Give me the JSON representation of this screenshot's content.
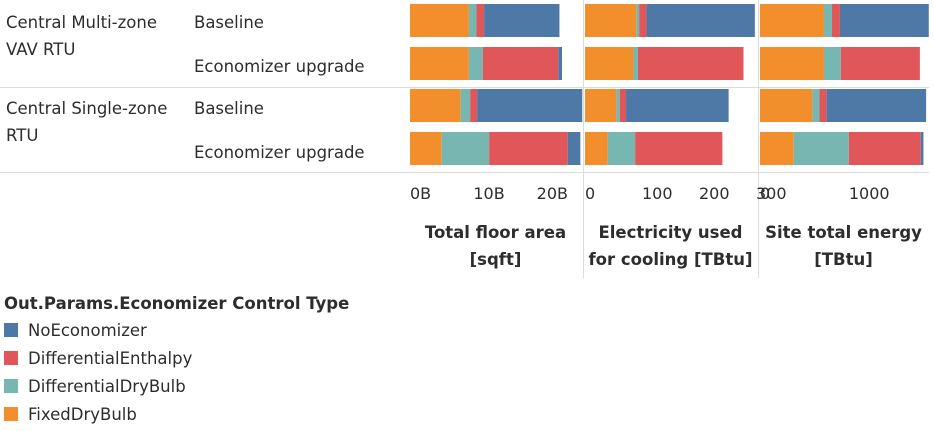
{
  "chart_data": {
    "type": "bar",
    "orientation": "horizontal",
    "stacked": true,
    "groups": [
      {
        "label": "Central Multi-zone VAV RTU",
        "label_lines": [
          "Central Multi-zone",
          "VAV RTU"
        ]
      },
      {
        "label": "Central Single-zone RTU",
        "label_lines": [
          "Central Single-zone",
          "RTU"
        ]
      }
    ],
    "rows": [
      {
        "group": 0,
        "label": "Baseline"
      },
      {
        "group": 0,
        "label": "Economizer upgrade"
      },
      {
        "group": 1,
        "label": "Baseline"
      },
      {
        "group": 1,
        "label": "Economizer upgrade"
      }
    ],
    "stack_order": [
      "FixedDryBulb",
      "DifferentialDryBulb",
      "DifferentialEnthalpy",
      "NoEconomizer"
    ],
    "legend": {
      "title": "Out.Params.Economizer Control Type",
      "items": [
        "NoEconomizer",
        "DifferentialEnthalpy",
        "DifferentialDryBulb",
        "FixedDryBulb"
      ]
    },
    "colors": {
      "NoEconomizer": "#4e79a7",
      "DifferentialEnthalpy": "#e15759",
      "DifferentialDryBulb": "#76b7b2",
      "FixedDryBulb": "#f28e2b"
    },
    "panels": [
      {
        "title_lines": [
          "Total floor area",
          "[sqft]"
        ],
        "xlim": [
          0,
          27
        ],
        "ticks": [
          {
            "value": 0,
            "label": "0B"
          },
          {
            "value": 10,
            "label": "10B"
          },
          {
            "value": 20,
            "label": "20B"
          }
        ],
        "series": [
          {
            "name": "FixedDryBulb",
            "values": [
              9.3,
              9.3,
              8.0,
              5.0
            ]
          },
          {
            "name": "DifferentialDryBulb",
            "values": [
              1.2,
              2.2,
              1.5,
              7.5
            ]
          },
          {
            "name": "DifferentialEnthalpy",
            "values": [
              1.2,
              11.9,
              1.1,
              12.4
            ]
          },
          {
            "name": "NoEconomizer",
            "values": [
              11.9,
              0.6,
              16.6,
              2.0
            ]
          }
        ]
      },
      {
        "title_lines": [
          "Electricity used",
          "for cooling [TBtu]"
        ],
        "xlim": [
          0,
          300
        ],
        "ticks": [
          {
            "value": 0,
            "label": "0"
          },
          {
            "value": 100,
            "label": "100"
          },
          {
            "value": 200,
            "label": "200"
          },
          {
            "value": 300,
            "label": "300"
          }
        ],
        "series": [
          {
            "name": "FixedDryBulb",
            "values": [
              90,
              85,
              55,
              40
            ]
          },
          {
            "name": "DifferentialDryBulb",
            "values": [
              5,
              8,
              6,
              48
            ]
          },
          {
            "name": "DifferentialEnthalpy",
            "values": [
              13,
              185,
              11,
              153
            ]
          },
          {
            "name": "NoEconomizer",
            "values": [
              190,
              0,
              180,
              0
            ]
          }
        ]
      },
      {
        "title_lines": [
          "Site total energy",
          "[TBtu]"
        ],
        "xlim": [
          0,
          1880
        ],
        "ticks": [
          {
            "value": 0,
            "label": "0"
          },
          {
            "value": 1000,
            "label": "1000"
          }
        ],
        "series": [
          {
            "name": "FixedDryBulb",
            "values": [
              720,
              720,
              590,
              380
            ]
          },
          {
            "name": "DifferentialDryBulb",
            "values": [
              90,
              190,
              80,
              620
            ]
          },
          {
            "name": "DifferentialEnthalpy",
            "values": [
              90,
              890,
              80,
              810
            ]
          },
          {
            "name": "NoEconomizer",
            "values": [
              1000,
              0,
              1120,
              30
            ]
          }
        ]
      }
    ]
  }
}
